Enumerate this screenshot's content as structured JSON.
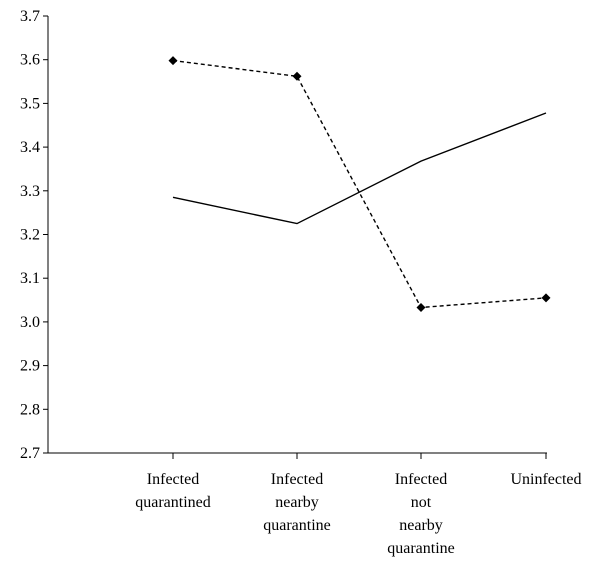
{
  "chart_data": {
    "type": "line",
    "title": "",
    "xlabel": "",
    "ylabel": "",
    "ylim": [
      2.7,
      3.7
    ],
    "yticks": [
      "2.7",
      "2.8",
      "2.9",
      "3.0",
      "3.1",
      "3.2",
      "3.3",
      "3.4",
      "3.5",
      "3.6",
      "3.7"
    ],
    "categories": [
      [
        "Infected",
        "quarantined"
      ],
      [
        "Infected",
        "nearby",
        "quarantine"
      ],
      [
        "Infected",
        "not",
        "nearby",
        "quarantine"
      ],
      [
        "Uninfected"
      ]
    ],
    "grid": false,
    "legend": "none",
    "series": [
      {
        "style": "solid",
        "marker": "none",
        "color": "#000000",
        "values": [
          3.285,
          3.225,
          3.368,
          3.478
        ]
      },
      {
        "style": "dashed",
        "marker": "diamond",
        "color": "#000000",
        "values": [
          3.598,
          3.562,
          3.033,
          3.055
        ]
      }
    ]
  }
}
